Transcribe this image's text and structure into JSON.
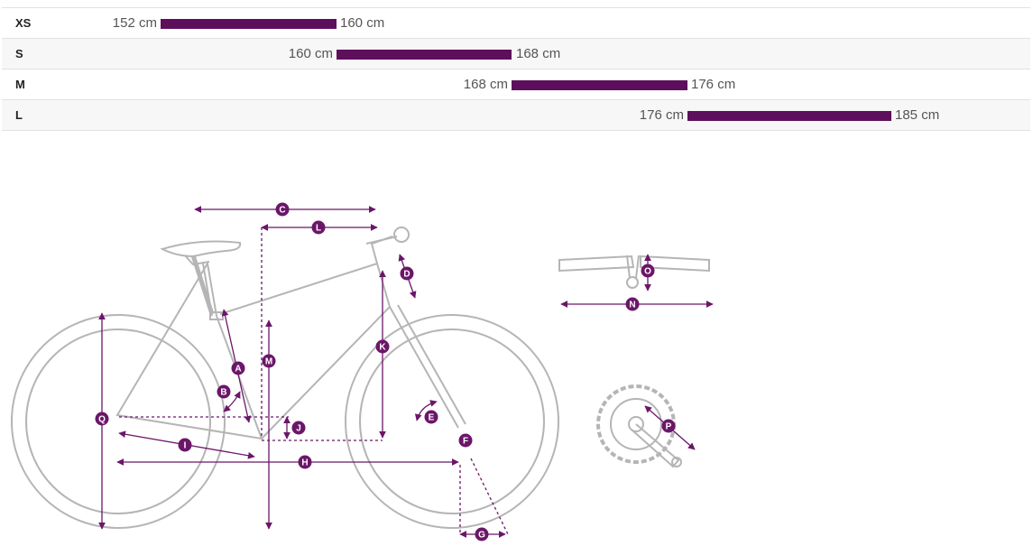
{
  "size_chart": {
    "unit": "cm",
    "rows": [
      {
        "size": "XS",
        "min_label": "152 cm",
        "max_label": "160 cm",
        "min": 152,
        "max": 160
      },
      {
        "size": "S",
        "min_label": "160 cm",
        "max_label": "168 cm",
        "min": 160,
        "max": 168
      },
      {
        "size": "M",
        "min_label": "168 cm",
        "max_label": "176 cm",
        "min": 168,
        "max": 176
      },
      {
        "size": "L",
        "min_label": "176 cm",
        "max_label": "185 cm",
        "min": 176,
        "max": 185
      }
    ],
    "bar_color": "#5e0f5c"
  },
  "geometry_markers": [
    "A",
    "B",
    "C",
    "D",
    "E",
    "F",
    "G",
    "H",
    "I",
    "J",
    "K",
    "L",
    "M",
    "N",
    "O",
    "P",
    "Q"
  ],
  "colors": {
    "accent": "#6b1669",
    "frame_outline": "#b5b5b5",
    "row_alt_bg": "#f7f7f7"
  }
}
